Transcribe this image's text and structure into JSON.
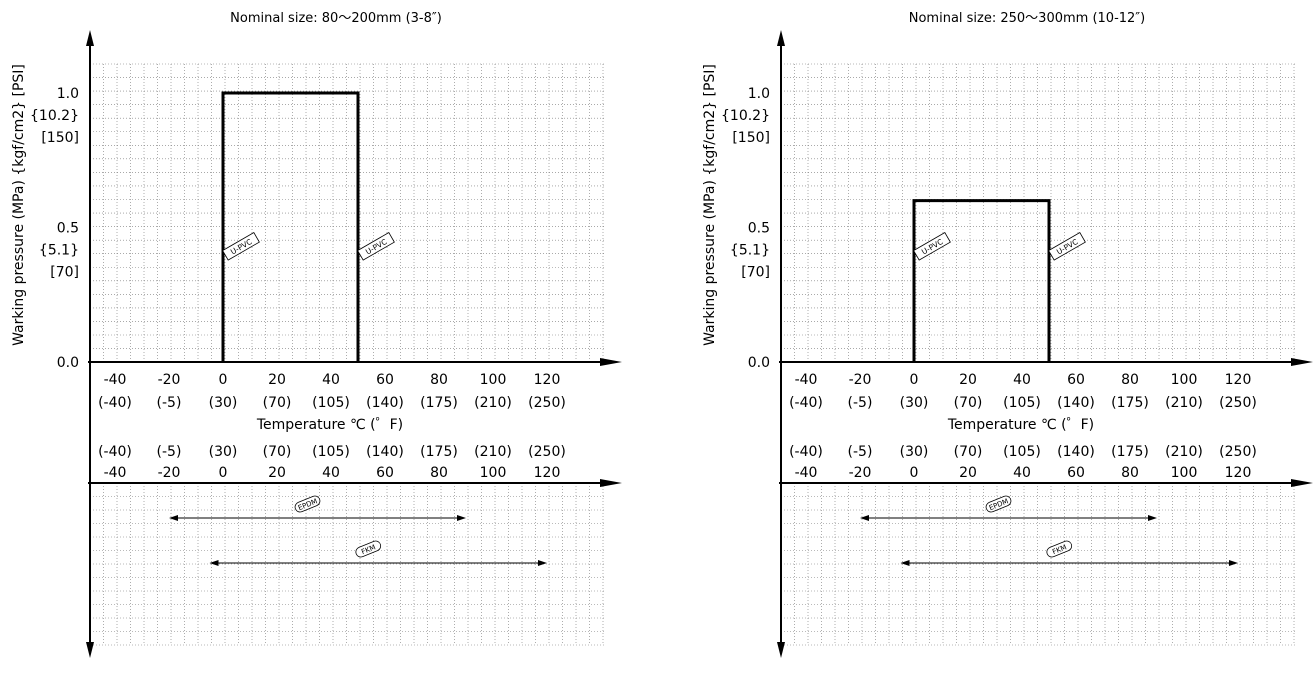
{
  "chart_data": [
    {
      "type": "area",
      "title": "Nominal size: 80～200mm (3-8″)",
      "ylabel": "Warking pressure (MPa) {kgf/cm2} [PSI]",
      "xlabel": "Temperature ℃ (゜F)",
      "xlim": [
        -40,
        130
      ],
      "ylim": [
        0,
        1.1
      ],
      "grid": true,
      "x_ticks_c": [
        "-40",
        "-20",
        "0",
        "20",
        "40",
        "60",
        "80",
        "100",
        "120"
      ],
      "x_ticks_f": [
        "(-40)",
        "(-5)",
        "(30)",
        "(70)",
        "(105)",
        "(140)",
        "(175)",
        "(210)",
        "(250)"
      ],
      "y_ticks": [
        {
          "value": 1.0,
          "mpa": "1.0",
          "kgf": "{10.2}",
          "psi": "[150]"
        },
        {
          "value": 0.5,
          "mpa": "0.5",
          "kgf": "{5.1}",
          "psi": "[70]"
        },
        {
          "value": 0.0,
          "mpa": "0.0",
          "kgf": "",
          "psi": ""
        }
      ],
      "series": [
        {
          "name": "U-PVC",
          "x": [
            0,
            0,
            50,
            50
          ],
          "y": [
            0,
            1.0,
            1.0,
            0
          ]
        }
      ],
      "series_tags": [
        {
          "label": "U-PVC",
          "x": 0,
          "y": 0.43
        },
        {
          "label": "U-PVC",
          "x": 50,
          "y": 0.43
        }
      ],
      "ranges": [
        {
          "name": "EPDM",
          "x_min": -20,
          "x_max": 90
        },
        {
          "name": "FKM",
          "x_min": -5,
          "x_max": 120
        }
      ]
    },
    {
      "type": "area",
      "title": "Nominal size: 250～300mm (10-12″)",
      "ylabel": "Warking pressure (MPa) {kgf/cm2} [PSI]",
      "xlabel": "Temperature ℃ (゜F)",
      "xlim": [
        -40,
        130
      ],
      "ylim": [
        0,
        1.1
      ],
      "grid": true,
      "x_ticks_c": [
        "-40",
        "-20",
        "0",
        "20",
        "40",
        "60",
        "80",
        "100",
        "120"
      ],
      "x_ticks_f": [
        "(-40)",
        "(-5)",
        "(30)",
        "(70)",
        "(105)",
        "(140)",
        "(175)",
        "(210)",
        "(250)"
      ],
      "y_ticks": [
        {
          "value": 1.0,
          "mpa": "1.0",
          "kgf": "{10.2}",
          "psi": "[150]"
        },
        {
          "value": 0.5,
          "mpa": "0.5",
          "kgf": "{5.1}",
          "psi": "[70]"
        },
        {
          "value": 0.0,
          "mpa": "0.0",
          "kgf": "",
          "psi": ""
        }
      ],
      "series": [
        {
          "name": "U-PVC",
          "x": [
            0,
            0,
            50,
            50
          ],
          "y": [
            0,
            0.6,
            0.6,
            0
          ]
        }
      ],
      "series_tags": [
        {
          "label": "U-PVC",
          "x": 0,
          "y": 0.43
        },
        {
          "label": "U-PVC",
          "x": 50,
          "y": 0.43
        }
      ],
      "ranges": [
        {
          "name": "EPDM",
          "x_min": -20,
          "x_max": 90
        },
        {
          "name": "FKM",
          "x_min": -5,
          "x_max": 120
        }
      ]
    }
  ]
}
